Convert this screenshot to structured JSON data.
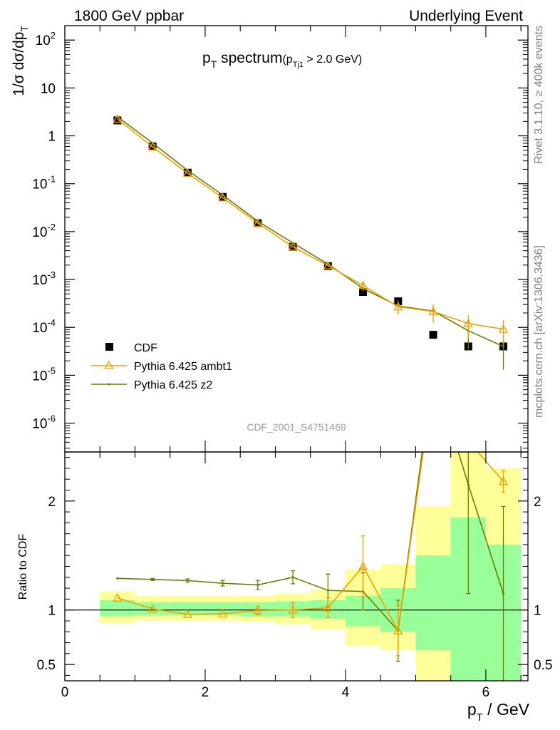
{
  "header": {
    "left": "1800 GeV ppbar",
    "right": "Underlying Event"
  },
  "side": {
    "rivet": "Rivet 3.1.10, ≥ 400k events",
    "mcplots": "mcplots.cern.ch [arXiv:1306.3436]"
  },
  "analysis_id": "CDF_2001_S4751469",
  "plot_title": {
    "main": "p",
    "main_sub": "T",
    "main_rest": " spectrum",
    "cut_open": "(p",
    "cut_sub": "Tj1",
    "cut_rest": " > 2.0 GeV)"
  },
  "axes": {
    "xlabel": "p",
    "xlabel_sub": "T",
    "xlabel_rest": " / GeV",
    "ylabel": "1/σ dσ/dp",
    "ylabel_sub": "T",
    "ratio_ylabel": "Ratio to CDF"
  },
  "colors": {
    "data": "#000000",
    "ambt1": "#f0a000",
    "z2": "#6b7d00",
    "band_inner": "#99ff99",
    "band_outer": "#ffff99"
  },
  "chart_data": {
    "type": "line",
    "main": {
      "yscale": "log",
      "ylim": [
        2.5e-07,
        200
      ],
      "xlim": [
        0,
        6.6
      ],
      "ytick_labels": [
        "10^2",
        "10",
        "1",
        "10^-1",
        "10^-2",
        "10^-3",
        "10^-4",
        "10^-5",
        "10^-6"
      ],
      "x": [
        0.75,
        1.25,
        1.75,
        2.25,
        2.75,
        3.25,
        3.75,
        4.25,
        4.75,
        5.25,
        5.75,
        6.25
      ],
      "series": [
        {
          "name": "CDF",
          "style": "data",
          "values": [
            2.1,
            0.6,
            0.17,
            0.053,
            0.015,
            0.0048,
            0.0019,
            0.00055,
            0.00035,
            7e-05,
            4e-05,
            4e-05
          ]
        },
        {
          "name": "Pythia 6.425 ambt1",
          "style": "ambt1",
          "values": [
            2.25,
            0.59,
            0.165,
            0.051,
            0.015,
            0.0048,
            0.00195,
            0.00075,
            0.00027,
            0.000215,
            0.00012,
            9.2e-05
          ],
          "err": [
            0,
            0,
            0,
            0,
            0,
            0,
            0,
            0.00012,
            7e-05,
            9e-05,
            6e-05,
            5e-05
          ]
        },
        {
          "name": "Pythia 6.425 z2",
          "style": "z2",
          "values": [
            2.5,
            0.71,
            0.19,
            0.058,
            0.0165,
            0.0058,
            0.0021,
            0.00065,
            0.00028,
            0.00022,
            8.5e-05,
            4e-05
          ],
          "err": [
            0,
            0,
            0,
            0,
            0,
            0,
            0,
            0.0001,
            9e-05,
            5e-05,
            5e-05,
            2.7e-05
          ]
        }
      ]
    },
    "ratio": {
      "ylabel": "Ratio to CDF",
      "ylim": [
        0.35,
        2.45
      ],
      "yticks": [
        0.5,
        1,
        2
      ],
      "ytick_labels": [
        "0.5",
        "1",
        "2"
      ],
      "xticks": [
        0,
        2,
        4,
        6
      ],
      "xtick_labels": [
        "0",
        "2",
        "4",
        "6"
      ],
      "bins": [
        [
          0.5,
          1.0
        ],
        [
          1.0,
          1.5
        ],
        [
          1.5,
          2.0
        ],
        [
          2.0,
          2.5
        ],
        [
          2.5,
          3.0
        ],
        [
          3.0,
          3.5
        ],
        [
          3.5,
          4.0
        ],
        [
          4.0,
          4.5
        ],
        [
          4.5,
          5.0
        ],
        [
          5.0,
          5.5
        ],
        [
          5.5,
          6.0
        ],
        [
          6.0,
          6.5
        ]
      ],
      "band_inner": [
        [
          0.94,
          1.09
        ],
        [
          0.95,
          1.07
        ],
        [
          0.95,
          1.07
        ],
        [
          0.95,
          1.07
        ],
        [
          0.94,
          1.07
        ],
        [
          0.94,
          1.08
        ],
        [
          0.92,
          1.09
        ],
        [
          0.85,
          1.13
        ],
        [
          0.8,
          1.2
        ],
        [
          0.63,
          1.5
        ],
        [
          0.35,
          1.85
        ],
        [
          0.35,
          1.6
        ]
      ],
      "band_outer": [
        [
          0.88,
          1.17
        ],
        [
          0.9,
          1.13
        ],
        [
          0.9,
          1.13
        ],
        [
          0.9,
          1.13
        ],
        [
          0.89,
          1.13
        ],
        [
          0.87,
          1.15
        ],
        [
          0.82,
          1.18
        ],
        [
          0.67,
          1.37
        ],
        [
          0.63,
          1.42
        ],
        [
          0.35,
          1.95
        ],
        [
          0.35,
          2.6
        ],
        [
          0.35,
          2.3
        ]
      ],
      "series": [
        {
          "name": "Pythia 6.425 ambt1",
          "style": "ambt1",
          "values": [
            1.11,
            1.01,
            0.96,
            0.965,
            0.995,
            1.0,
            1.02,
            1.4,
            0.81,
            3.1,
            2.55,
            2.18
          ],
          "err": [
            0,
            0,
            0,
            0,
            0.04,
            0.07,
            0.09,
            0.28,
            0.23,
            0,
            0,
            0.1
          ]
        },
        {
          "name": "Pythia 6.425 z2",
          "style": "z2",
          "values": [
            1.29,
            1.28,
            1.27,
            1.245,
            1.23,
            1.3,
            1.18,
            1.17,
            0.81,
            3.2,
            2.15,
            1.15
          ],
          "err": [
            0,
            0.01,
            0.015,
            0.025,
            0.04,
            0.06,
            0.15,
            0.17,
            0.28,
            0,
            1.0,
            0.8
          ]
        }
      ]
    }
  }
}
